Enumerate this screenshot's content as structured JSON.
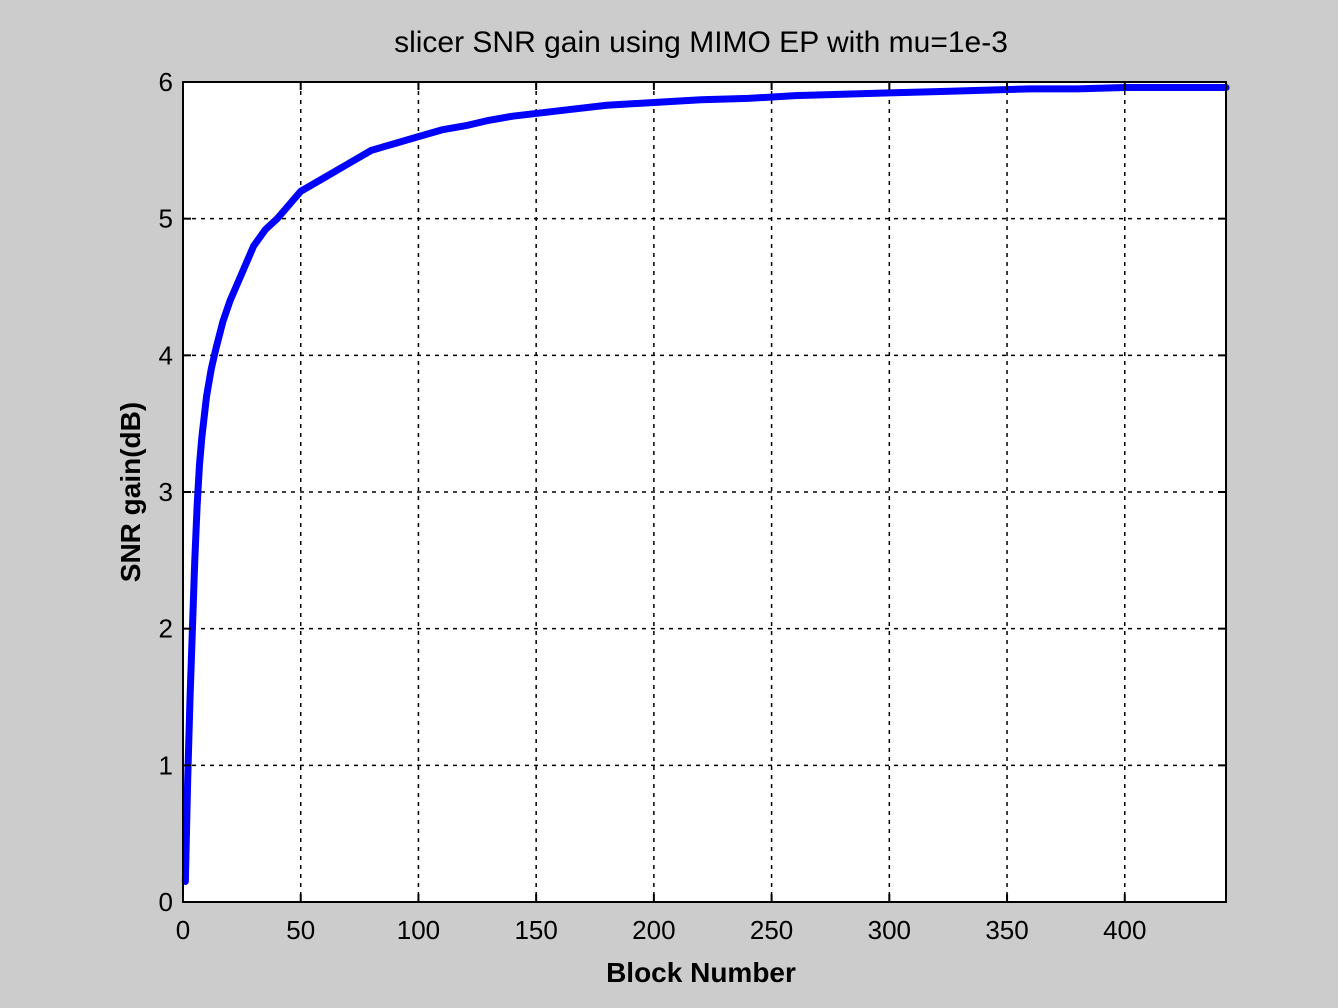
{
  "chart_data": {
    "type": "line",
    "title": "slicer SNR gain using MIMO EP with mu=1e-3",
    "xlabel": "Block Number",
    "ylabel": "SNR gain(dB)",
    "xlim": [
      0,
      443
    ],
    "ylim": [
      0,
      6
    ],
    "xticks": [
      0,
      50,
      100,
      150,
      200,
      250,
      300,
      350,
      400
    ],
    "yticks": [
      0,
      1,
      2,
      3,
      4,
      5,
      6
    ],
    "xtick_labels": [
      "0",
      "50",
      "100",
      "150",
      "200",
      "250",
      "300",
      "350",
      "400"
    ],
    "ytick_labels": [
      "0",
      "1",
      "2",
      "3",
      "4",
      "5",
      "6"
    ],
    "grid": true,
    "grid_style": "dotted",
    "series": [
      {
        "color": "#0000ff",
        "x": [
          1,
          2,
          3,
          4,
          5,
          6,
          7,
          8,
          10,
          12,
          14,
          17,
          20,
          25,
          30,
          35,
          40,
          45,
          50,
          60,
          70,
          80,
          90,
          100,
          110,
          120,
          130,
          140,
          150,
          165,
          180,
          200,
          220,
          240,
          260,
          280,
          300,
          320,
          340,
          360,
          380,
          400,
          420,
          443
        ],
        "y": [
          0.15,
          0.9,
          1.5,
          2.0,
          2.5,
          2.9,
          3.2,
          3.4,
          3.7,
          3.9,
          4.05,
          4.25,
          4.4,
          4.6,
          4.8,
          4.92,
          5.0,
          5.1,
          5.2,
          5.3,
          5.4,
          5.5,
          5.55,
          5.6,
          5.65,
          5.68,
          5.72,
          5.75,
          5.77,
          5.8,
          5.83,
          5.85,
          5.87,
          5.88,
          5.9,
          5.91,
          5.92,
          5.93,
          5.94,
          5.95,
          5.95,
          5.96,
          5.96,
          5.96
        ]
      }
    ]
  },
  "colors": {
    "figure_background": "#cccccc",
    "plot_background": "#ffffff",
    "line": "#0000ff",
    "axes": "#000000"
  }
}
